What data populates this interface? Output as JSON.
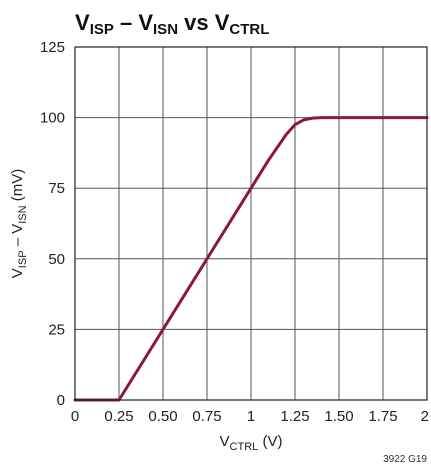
{
  "chart_data": {
    "type": "line",
    "title": {
      "parts": [
        {
          "text": "V",
          "sub": "ISP"
        },
        {
          "text": " – V",
          "sub": "ISN"
        },
        {
          "text": " vs V",
          "sub": "CTRL"
        }
      ]
    },
    "xlabel": {
      "parts": [
        {
          "text": "V",
          "sub": "CTRL"
        },
        {
          "text": " (V)",
          "sub": ""
        }
      ]
    },
    "ylabel": {
      "parts": [
        {
          "text": "V",
          "sub": "ISP"
        },
        {
          "text": " – V",
          "sub": "ISN"
        },
        {
          "text": " (mV)",
          "sub": ""
        }
      ]
    },
    "xlim": [
      0,
      2
    ],
    "ylim": [
      0,
      125
    ],
    "x_ticks": [
      0,
      0.25,
      0.5,
      0.75,
      1,
      1.25,
      1.5,
      1.75,
      2
    ],
    "x_tick_labels": [
      "0",
      "0.25",
      "0.50",
      "0.75",
      "1",
      "1.25",
      "1.50",
      "1.75",
      "2"
    ],
    "y_ticks": [
      0,
      25,
      50,
      75,
      100,
      125
    ],
    "y_tick_labels": [
      "0",
      "25",
      "50",
      "75",
      "100",
      "125"
    ],
    "grid": true,
    "line_color": "#8b1a3a",
    "grid_color": "#555555",
    "figure_code": "3922 G19",
    "series": [
      {
        "x": [
          0,
          0.25,
          0.5,
          0.75,
          1,
          1.1,
          1.2,
          1.25,
          1.3,
          1.35,
          1.4,
          1.45,
          1.5,
          2
        ],
        "y": [
          0,
          0,
          25,
          50,
          75,
          85,
          94,
          97.5,
          99.2,
          99.8,
          100,
          100,
          100,
          100
        ]
      }
    ]
  }
}
